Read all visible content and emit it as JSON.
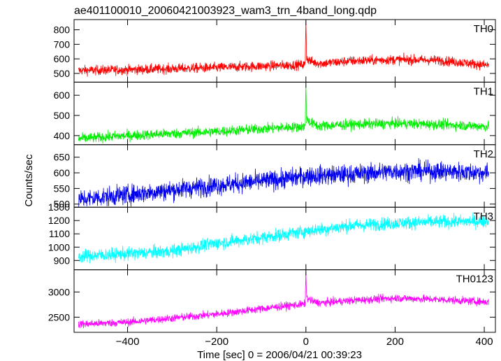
{
  "chart_data": {
    "type": "line",
    "title": "ae401100010_20060421003923_wam3_trn_4band_long.qdp",
    "xlabel": "Time [sec] 0 = 2006/04/21 00:39:23",
    "ylabel": "Counts/sec",
    "xlim": [
      -520,
      425
    ],
    "x_ticks": [
      -400,
      -200,
      0,
      200,
      400
    ],
    "x_tick_labels": [
      "−400",
      "−200",
      "0",
      "200",
      "400"
    ],
    "x_start": -510,
    "x_end": 410,
    "panels": [
      {
        "name": "TH0",
        "color": "#ff0000",
        "ylim": [
          440,
          870
        ],
        "y_ticks": [
          500,
          600,
          700,
          800
        ],
        "baseline": [
          [
            -510,
            520
          ],
          [
            -400,
            525
          ],
          [
            -200,
            540
          ],
          [
            -50,
            555
          ],
          [
            0,
            560
          ],
          [
            100,
            585
          ],
          [
            200,
            595
          ],
          [
            300,
            590
          ],
          [
            410,
            555
          ]
        ],
        "noise": 24,
        "spike": {
          "x": 0,
          "peak": 860
        },
        "after_spike": {
          "x": 20,
          "peak": 650
        }
      },
      {
        "name": "TH1",
        "color": "#00ee00",
        "ylim": [
          355,
          665
        ],
        "y_ticks": [
          400,
          500,
          600
        ],
        "baseline": [
          [
            -510,
            385
          ],
          [
            -400,
            400
          ],
          [
            -200,
            420
          ],
          [
            -50,
            440
          ],
          [
            0,
            445
          ],
          [
            100,
            455
          ],
          [
            200,
            460
          ],
          [
            300,
            455
          ],
          [
            410,
            445
          ]
        ],
        "noise": 18,
        "spike": {
          "x": 0,
          "peak": 650
        },
        "after_spike": {
          "x": 15,
          "peak": 520
        }
      },
      {
        "name": "TH2",
        "color": "#0000ee",
        "ylim": [
          490,
          690
        ],
        "y_ticks": [
          500,
          550,
          600,
          650
        ],
        "baseline": [
          [
            -510,
            515
          ],
          [
            -400,
            530
          ],
          [
            -200,
            560
          ],
          [
            -50,
            580
          ],
          [
            0,
            590
          ],
          [
            100,
            595
          ],
          [
            200,
            605
          ],
          [
            300,
            605
          ],
          [
            410,
            600
          ]
        ],
        "noise": 22
      },
      {
        "name": "TH3",
        "color": "#00ffff",
        "ylim": [
          830,
          1300
        ],
        "y_ticks": [
          900,
          1000,
          1100,
          1200,
          1300
        ],
        "baseline": [
          [
            -510,
            930
          ],
          [
            -400,
            950
          ],
          [
            -300,
            970
          ],
          [
            -200,
            1030
          ],
          [
            -100,
            1070
          ],
          [
            0,
            1120
          ],
          [
            100,
            1160
          ],
          [
            200,
            1180
          ],
          [
            300,
            1190
          ],
          [
            410,
            1195
          ]
        ],
        "noise": 35
      },
      {
        "name": "TH0123",
        "color": "#ff00ff",
        "ylim": [
          2200,
          3440
        ],
        "y_ticks": [
          2500,
          3000
        ],
        "baseline": [
          [
            -510,
            2360
          ],
          [
            -400,
            2400
          ],
          [
            -200,
            2560
          ],
          [
            -50,
            2720
          ],
          [
            0,
            2760
          ],
          [
            100,
            2830
          ],
          [
            200,
            2880
          ],
          [
            300,
            2850
          ],
          [
            410,
            2800
          ]
        ],
        "noise": 55,
        "spike": {
          "x": 0,
          "peak": 3380
        },
        "after_spike": {
          "x": 20,
          "peak": 3020
        }
      }
    ]
  }
}
